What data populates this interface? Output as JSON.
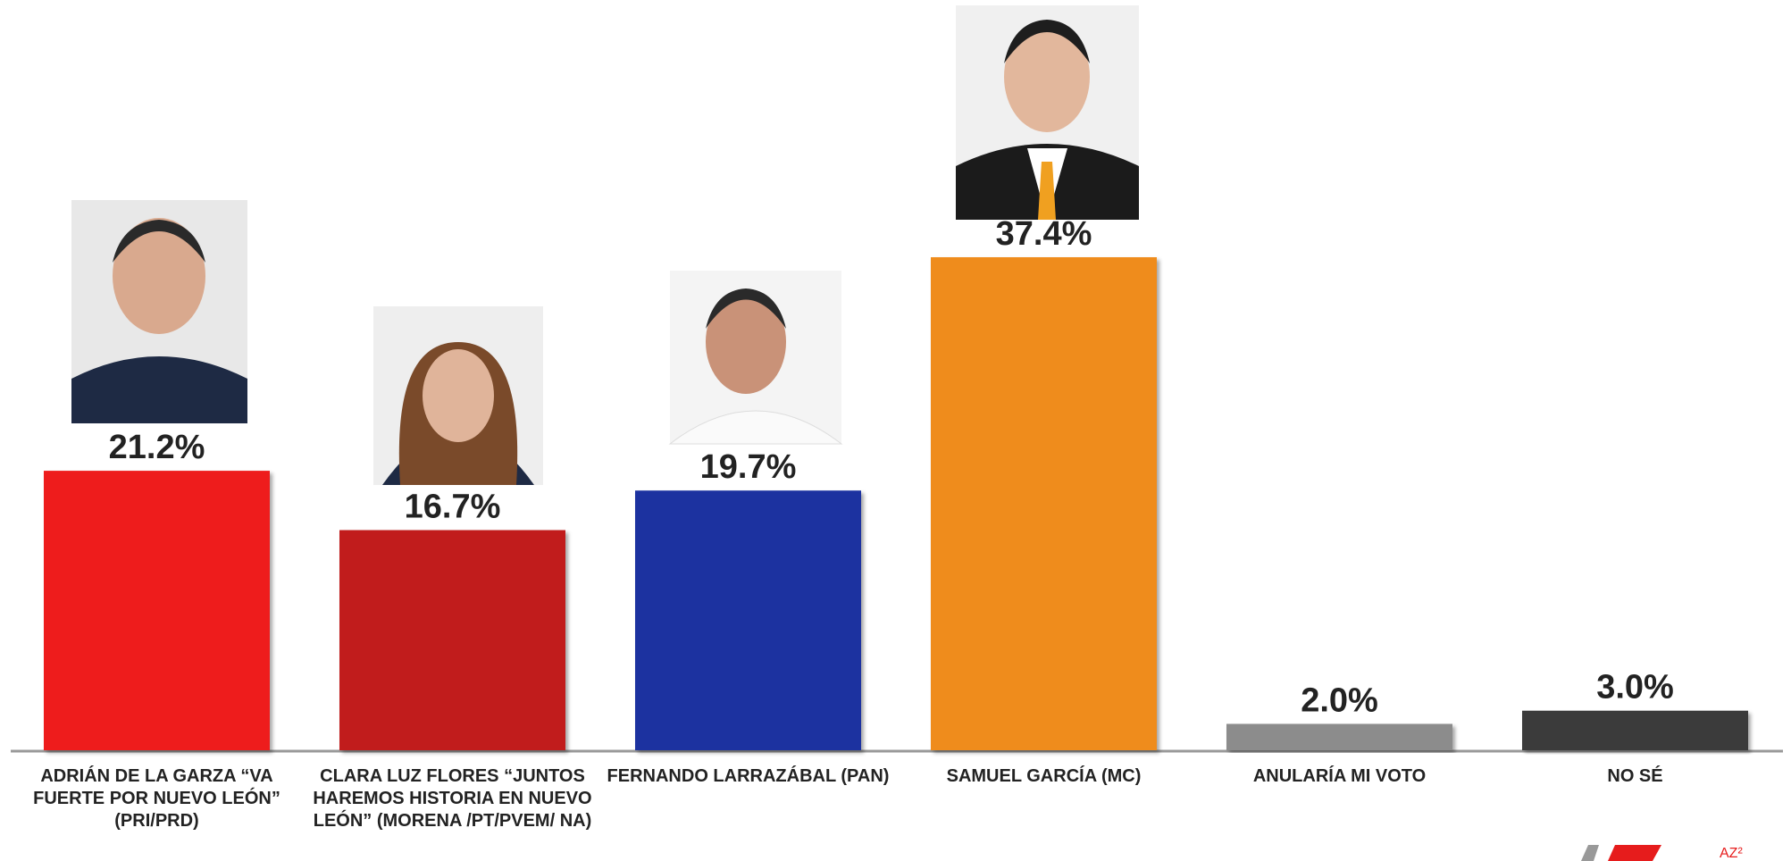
{
  "chart_data": {
    "type": "bar",
    "categories": [
      "ADRIÁN DE LA GARZA “VA FUERTE POR NUEVO LEÓN” (PRI/PRD)",
      "CLARA LUZ FLORES “JUNTOS HAREMOS HISTORIA EN NUEVO LEÓN” (MORENA /PT/PVEM/ NA)",
      "FERNANDO LARRAZÁBAL (PAN)",
      "SAMUEL GARCÍA (MC)",
      "ANULARÍA MI VOTO",
      "NO SÉ"
    ],
    "values": [
      21.2,
      16.7,
      19.7,
      37.4,
      2.0,
      3.0
    ],
    "value_labels": [
      "21.2%",
      "16.7%",
      "19.7%",
      "37.4%",
      "2.0%",
      "3.0%"
    ],
    "colors": [
      "#ee1c1c",
      "#c11a1a",
      "#1b33a0",
      "#ef8c1a",
      "#8c8c8c",
      "#3b3b3b"
    ],
    "logo": "AZ²"
  }
}
